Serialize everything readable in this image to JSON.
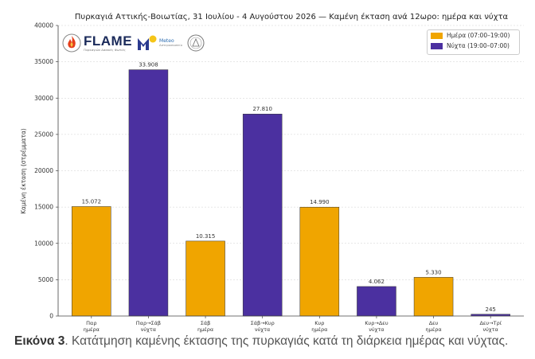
{
  "chart_data": {
    "type": "bar",
    "title": "Πυρκαγιά Αττικής-Βοιωτίας, 31 Ιουλίου - 4 Αυγούστου 2026 — Καμένη έκταση ανά 12ωρο: ημέρα και νύχτα",
    "ylabel": "Καμένη έκταση (στρέμματα)",
    "xlabel": "",
    "ylim": [
      0,
      40000
    ],
    "yticks": [
      0,
      5000,
      10000,
      15000,
      20000,
      25000,
      30000,
      35000,
      40000
    ],
    "grid": true,
    "legend_position": "top-right",
    "legend": [
      {
        "label": "Ημέρα (07:00–19:00)",
        "color": "#f0a500"
      },
      {
        "label": "Νύχτα (19:00–07:00)",
        "color": "#4b30a0"
      }
    ],
    "bars": [
      {
        "label": [
          "Παρ",
          "ημέρα"
        ],
        "value": 15072,
        "value_label": "15.072",
        "period": "day"
      },
      {
        "label": [
          "Παρ→Σάβ",
          "νύχτα"
        ],
        "value": 33908,
        "value_label": "33.908",
        "period": "night"
      },
      {
        "label": [
          "Σάβ",
          "ημέρα"
        ],
        "value": 10315,
        "value_label": "10.315",
        "period": "day"
      },
      {
        "label": [
          "Σάβ→Κυρ",
          "νύχτα"
        ],
        "value": 27810,
        "value_label": "27.810",
        "period": "night"
      },
      {
        "label": [
          "Κυρ",
          "ημέρα"
        ],
        "value": 14990,
        "value_label": "14.990",
        "period": "day"
      },
      {
        "label": [
          "Κυρ→Δευ",
          "νύχτα"
        ],
        "value": 4062,
        "value_label": "4.062",
        "period": "night"
      },
      {
        "label": [
          "Δευ",
          "ημέρα"
        ],
        "value": 5330,
        "value_label": "5.330",
        "period": "day"
      },
      {
        "label": [
          "Δευ→Τρί",
          "νύχτα"
        ],
        "value": 245,
        "value_label": "245",
        "period": "night"
      }
    ],
    "colors": {
      "day": "#f0a500",
      "night": "#4b30a0"
    }
  },
  "logos": {
    "flame": "FLAME",
    "flame_sub": "Πυρκαγιών Δασικές Φωτιές",
    "meteo_line1": "Meteo",
    "meteo_line2": "Αστεροσκοπείο"
  },
  "caption": {
    "label": "Εικόνα 3",
    "text": ". Κατάτμηση καμένης έκτασης της πυρκαγιάς κατά τη διάρκεια ημέρας και νύχτας."
  }
}
